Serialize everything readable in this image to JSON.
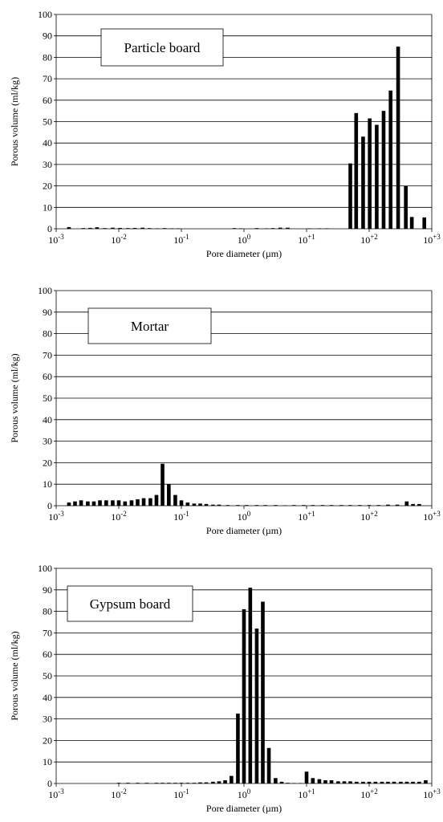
{
  "figure_ref": "fig",
  "chart_data": [
    {
      "type": "bar",
      "legend_label": "Particle board",
      "xlabel": "Pore diameter (µm)",
      "ylabel": "Porous volume (ml/kg)",
      "x_scale": "log",
      "xlim": [
        0.001,
        1000
      ],
      "ylim": [
        0,
        100
      ],
      "y_ticks": [
        0,
        10,
        20,
        30,
        40,
        50,
        60,
        70,
        80,
        90,
        100
      ],
      "x_tick_labels": [
        {
          "base": "10",
          "exp": "-3"
        },
        {
          "base": "10",
          "exp": "-2"
        },
        {
          "base": "10",
          "exp": "-1"
        },
        {
          "base": "10",
          "exp": "0"
        },
        {
          "base": "10",
          "exp": "+1"
        },
        {
          "base": "10",
          "exp": "+2"
        },
        {
          "base": "10",
          "exp": "+3"
        }
      ],
      "grid": "horizontal",
      "x": [
        0.0016,
        0.0027,
        0.0035,
        0.0045,
        0.006,
        0.008,
        0.0105,
        0.014,
        0.018,
        0.024,
        0.031,
        0.041,
        0.054,
        0.07,
        0.09,
        0.7,
        0.9,
        1.6,
        2.3,
        2.9,
        3.8,
        5.0,
        11,
        16,
        21,
        50,
        62,
        80,
        102,
        132,
        170,
        220,
        290,
        385,
        480,
        760
      ],
      "values": [
        0.8,
        0.3,
        0.4,
        0.7,
        0.3,
        0.5,
        0.4,
        0.3,
        0.4,
        0.5,
        0.3,
        0.2,
        0.3,
        0.2,
        0.2,
        0.3,
        0.2,
        0.3,
        0.2,
        0.3,
        0.5,
        0.5,
        0.2,
        0.2,
        0.2,
        30.5,
        54,
        43,
        51.5,
        48.5,
        55,
        64.5,
        85,
        20,
        5.5,
        5.3
      ]
    },
    {
      "type": "bar",
      "legend_label": "Mortar",
      "xlabel": "Pore diameter (µm)",
      "ylabel": "Porous volume (ml/kg)",
      "x_scale": "log",
      "xlim": [
        0.001,
        1000
      ],
      "ylim": [
        0,
        100
      ],
      "y_ticks": [
        0,
        10,
        20,
        30,
        40,
        50,
        60,
        70,
        80,
        90,
        100
      ],
      "x_tick_labels": [
        {
          "base": "10",
          "exp": "-3"
        },
        {
          "base": "10",
          "exp": "-2"
        },
        {
          "base": "10",
          "exp": "-1"
        },
        {
          "base": "10",
          "exp": "0"
        },
        {
          "base": "10",
          "exp": "+1"
        },
        {
          "base": "10",
          "exp": "+2"
        },
        {
          "base": "10",
          "exp": "+3"
        }
      ],
      "grid": "horizontal",
      "x": [
        0.0016,
        0.002,
        0.0025,
        0.0032,
        0.004,
        0.005,
        0.0063,
        0.008,
        0.01,
        0.0126,
        0.016,
        0.02,
        0.025,
        0.032,
        0.04,
        0.05,
        0.063,
        0.08,
        0.1,
        0.126,
        0.16,
        0.2,
        0.25,
        0.32,
        0.4,
        0.55,
        0.8,
        1.1,
        1.6,
        2.2,
        3.2,
        4.5,
        6.3,
        9,
        12.6,
        18,
        25,
        36,
        50,
        71,
        100,
        141,
        200,
        282,
        398,
        501,
        631
      ],
      "values": [
        1.5,
        2,
        2.5,
        2,
        2,
        2.5,
        2.5,
        2.5,
        2.5,
        2,
        2.5,
        3,
        3.5,
        3.5,
        5,
        19.5,
        10,
        5,
        2.5,
        1.5,
        1,
        1,
        0.8,
        0.5,
        0.5,
        0.3,
        0.3,
        0.3,
        0.3,
        0.3,
        0.3,
        0.2,
        0.3,
        0.3,
        0.3,
        0.3,
        0.3,
        0.3,
        0.3,
        0.3,
        0.3,
        0.3,
        0.5,
        0.5,
        2,
        0.8,
        0.8
      ]
    },
    {
      "type": "bar",
      "legend_label": "Gypsum board",
      "xlabel": "Pore diameter (µm)",
      "ylabel": "Porous volume (ml/kg)",
      "x_scale": "log",
      "xlim": [
        0.001,
        1000
      ],
      "ylim": [
        0,
        100
      ],
      "y_ticks": [
        0,
        10,
        20,
        30,
        40,
        50,
        60,
        70,
        80,
        90,
        100
      ],
      "x_tick_labels": [
        {
          "base": "10",
          "exp": "-3"
        },
        {
          "base": "10",
          "exp": "-2"
        },
        {
          "base": "10",
          "exp": "-1"
        },
        {
          "base": "10",
          "exp": "0"
        },
        {
          "base": "10",
          "exp": "+1"
        },
        {
          "base": "10",
          "exp": "+2"
        },
        {
          "base": "10",
          "exp": "+3"
        }
      ],
      "grid": "horizontal",
      "x": [
        0.01,
        0.014,
        0.02,
        0.028,
        0.04,
        0.05,
        0.063,
        0.08,
        0.1,
        0.126,
        0.16,
        0.2,
        0.25,
        0.32,
        0.4,
        0.5,
        0.63,
        0.8,
        1.0,
        1.26,
        1.6,
        2.0,
        2.5,
        3.2,
        4.0,
        5.0,
        6.3,
        8.0,
        10,
        12.6,
        16,
        20,
        25,
        32,
        40,
        50,
        63,
        80,
        100,
        126,
        160,
        200,
        250,
        320,
        400,
        500,
        630,
        800
      ],
      "values": [
        0.3,
        0.3,
        0.3,
        0.3,
        0.3,
        0.3,
        0.3,
        0.3,
        0.3,
        0.3,
        0.3,
        0.5,
        0.5,
        0.8,
        1,
        1.5,
        3.5,
        32.5,
        81,
        91,
        72,
        84.5,
        16.5,
        2.5,
        0.8,
        0.3,
        0.2,
        0.2,
        5.5,
        2.5,
        2,
        1.5,
        1.5,
        1,
        1,
        1,
        0.8,
        0.8,
        0.8,
        0.8,
        0.8,
        0.8,
        0.8,
        0.8,
        0.8,
        0.8,
        0.8,
        1.5
      ]
    }
  ]
}
